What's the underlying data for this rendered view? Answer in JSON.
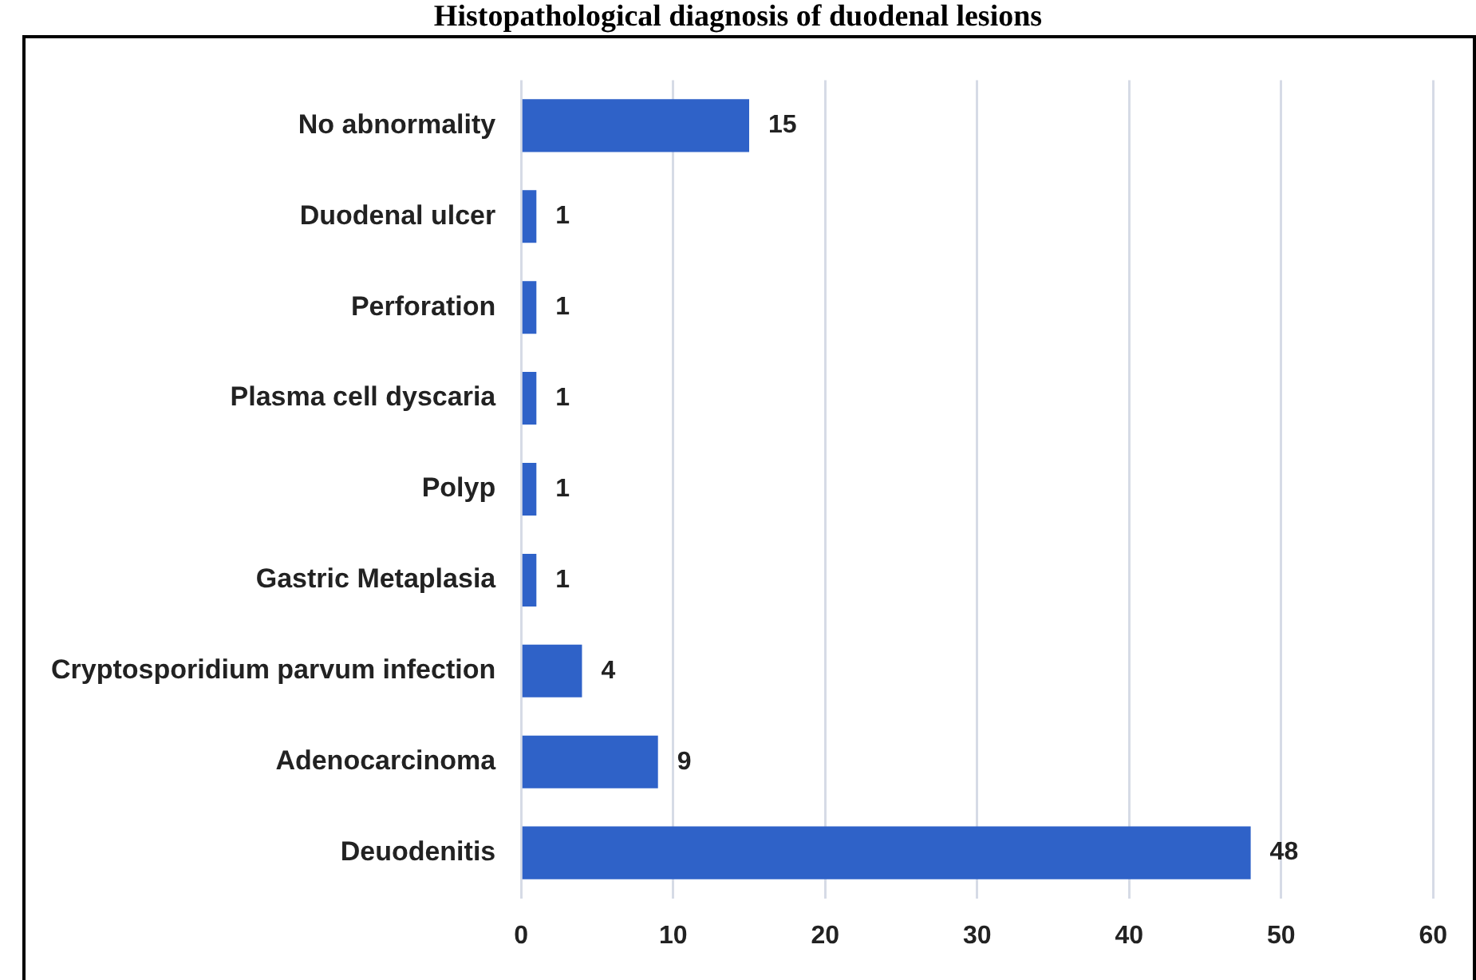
{
  "chart_data": {
    "type": "bar",
    "title": "Histopathological diagnosis of duodenal lesions",
    "orientation": "horizontal",
    "categories": [
      "No abnormality",
      "Duodenal ulcer",
      "Perforation",
      "Plasma cell dyscaria",
      "Polyp",
      "Gastric Metaplasia",
      "Cryptosporidium parvum infection",
      "Adenocarcinoma",
      "Deuodenitis"
    ],
    "values": [
      15,
      1,
      1,
      1,
      1,
      1,
      4,
      9,
      48
    ],
    "color": "#2f62c8",
    "xlim": [
      0,
      60
    ],
    "xticks": [
      0,
      10,
      20,
      30,
      40,
      50,
      60
    ],
    "grid": "x",
    "data_labels": true
  }
}
